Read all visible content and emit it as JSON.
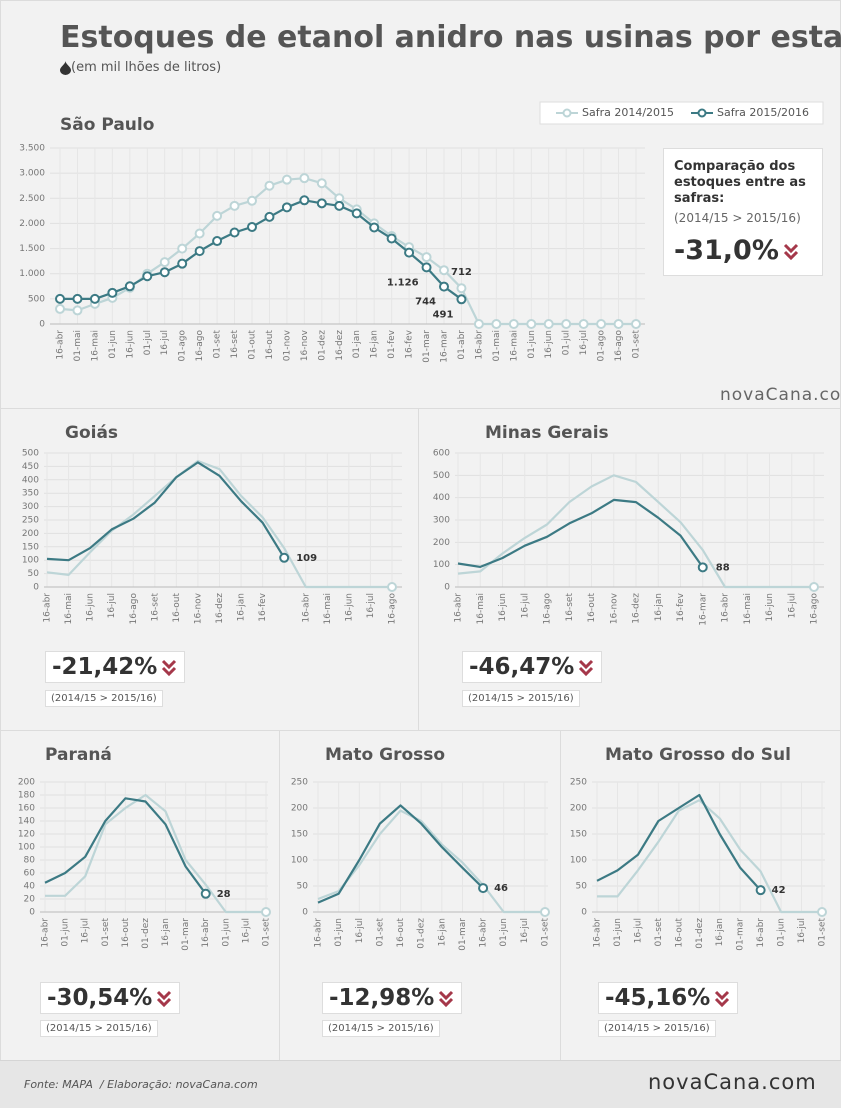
{
  "title": "Estoques de etanol anidro nas usinas por estado",
  "subtitle": "(em mil lhões de litros)",
  "source": "Fonte: MAPA  / Elaboração: novaCana.com",
  "logo": "novaCana.com",
  "chart_data": [
    {
      "type": "line",
      "title": "São Paulo",
      "grid": true,
      "markers": "all",
      "categories": [
        "16-abr",
        "01-mai",
        "16-mai",
        "01-jun",
        "16-jun",
        "01-jul",
        "16-jul",
        "01-ago",
        "16-ago",
        "01-set",
        "16-set",
        "01-out",
        "16-out",
        "01-nov",
        "16-nov",
        "01-dez",
        "16-dez",
        "01-jan",
        "16-jan",
        "01-fev",
        "16-fev",
        "01-mar",
        "16-mar",
        "01-abr",
        "16-abr",
        "01-mai",
        "16-mai",
        "01-jun",
        "16-jun",
        "01-jul",
        "16-jul",
        "01-ago",
        "16-ago",
        "01-set"
      ],
      "ylim": [
        0,
        3500
      ],
      "yticks": [
        0,
        500,
        {
          "value": 1000,
          "label": "1.000"
        },
        {
          "value": 1500,
          "label": "1.500"
        },
        {
          "value": 2000,
          "label": "2.000"
        },
        {
          "value": 2500,
          "label": "2.500"
        },
        {
          "value": 3000,
          "label": "3.000"
        },
        {
          "value": 3500,
          "label": "3.500"
        }
      ],
      "legend": "top-right",
      "series": [
        {
          "name": "Safra 2014/2015",
          "color": "#bdd5d7",
          "values": [
            300,
            270,
            400,
            520,
            720,
            1000,
            1230,
            1500,
            1800,
            2150,
            2350,
            2450,
            2750,
            2870,
            2900,
            2800,
            2500,
            2280,
            2000,
            1750,
            1530,
            1330,
            1070,
            712,
            0,
            0,
            0,
            0,
            0,
            0,
            0,
            0,
            0,
            0
          ],
          "value_labels": [
            null,
            null,
            null,
            null,
            null,
            null,
            null,
            null,
            null,
            null,
            null,
            null,
            null,
            null,
            null,
            null,
            null,
            null,
            null,
            null,
            null,
            null,
            null,
            "712",
            null,
            null,
            null,
            null,
            null,
            null,
            null,
            null,
            null,
            null
          ]
        },
        {
          "name": "Safra 2015/2016",
          "color": "#3c7a84",
          "values": [
            500,
            500,
            500,
            620,
            750,
            950,
            1030,
            1200,
            1450,
            1650,
            1820,
            1930,
            2130,
            2320,
            2460,
            2400,
            2350,
            2200,
            1920,
            1700,
            1420,
            1126,
            744,
            491,
            null,
            null,
            null,
            null,
            null,
            null,
            null,
            null,
            null,
            null
          ],
          "value_labels": [
            null,
            null,
            null,
            null,
            null,
            null,
            null,
            null,
            null,
            null,
            null,
            null,
            null,
            null,
            null,
            null,
            null,
            null,
            null,
            null,
            null,
            "1.126",
            "744",
            "491",
            null,
            null,
            null,
            null,
            null,
            null,
            null,
            null,
            null,
            null
          ]
        }
      ],
      "comparison": {
        "text": "Comparação dos estoques entre as safras:",
        "note": "(2014/15 > 2015/16)",
        "value": "-31,0%"
      }
    },
    {
      "type": "line",
      "title": "Goiás",
      "grid": true,
      "markers": "last",
      "categories": [
        "16-abr",
        "16-mai",
        "16-jun",
        "16-jul",
        "16-ago",
        "16-set",
        "16-out",
        "16-nov",
        "16-dez",
        "16-jan",
        "16-fev",
        null,
        "16-abr",
        "16-mai",
        "16-jun",
        "16-jul",
        "16-ago"
      ],
      "ylim": [
        0,
        500
      ],
      "yticks": [
        0,
        50,
        100,
        150,
        200,
        250,
        300,
        350,
        400,
        450,
        500
      ],
      "series": [
        {
          "color": "#bdd5d7",
          "values": [
            55,
            45,
            130,
            210,
            270,
            340,
            410,
            470,
            440,
            340,
            260,
            145,
            0,
            0,
            0,
            0,
            0
          ]
        },
        {
          "color": "#3c7a84",
          "values": [
            105,
            100,
            145,
            215,
            255,
            315,
            410,
            465,
            415,
            320,
            240,
            109,
            null,
            null,
            null,
            null,
            null
          ],
          "value_labels": [
            null,
            null,
            null,
            null,
            null,
            null,
            null,
            null,
            null,
            null,
            null,
            "109",
            null,
            null,
            null,
            null,
            null
          ]
        }
      ],
      "comparison": {
        "note": "(2014/15 > 2015/16)",
        "value": "-21,42%"
      }
    },
    {
      "type": "line",
      "title": "Minas Gerais",
      "grid": true,
      "markers": "last",
      "categories": [
        "16-abr",
        "16-mai",
        "16-jun",
        "16-jul",
        "16-ago",
        "16-set",
        "16-out",
        "16-nov",
        "16-dez",
        "16-jan",
        "16-fev",
        "16-mar",
        "16-abr",
        "16-mai",
        "16-jun",
        "16-jul",
        "16-ago"
      ],
      "ylim": [
        0,
        600
      ],
      "yticks": [
        0,
        100,
        200,
        300,
        400,
        500,
        600
      ],
      "series": [
        {
          "color": "#bdd5d7",
          "values": [
            60,
            70,
            150,
            220,
            280,
            380,
            450,
            500,
            470,
            380,
            290,
            165,
            0,
            0,
            0,
            0,
            0
          ]
        },
        {
          "color": "#3c7a84",
          "values": [
            105,
            90,
            130,
            185,
            225,
            285,
            330,
            390,
            380,
            310,
            230,
            88,
            null,
            null,
            null,
            null,
            null
          ],
          "value_labels": [
            null,
            null,
            null,
            null,
            null,
            null,
            null,
            null,
            null,
            null,
            null,
            "88",
            null,
            null,
            null,
            null,
            null
          ]
        }
      ],
      "comparison": {
        "note": "(2014/15 > 2015/16)",
        "value": "-46,47%"
      }
    },
    {
      "type": "line",
      "title": "Paraná",
      "grid": true,
      "markers": "last",
      "categories": [
        "16-abr",
        "01-jun",
        "16-jul",
        "01-set",
        "16-out",
        "01-dez",
        "16-jan",
        "01-mar",
        "16-abr",
        "01-jun",
        "16-jul",
        "01-set"
      ],
      "ylim": [
        0,
        200
      ],
      "yticks": [
        0,
        20,
        40,
        60,
        80,
        100,
        120,
        140,
        160,
        180,
        200
      ],
      "series": [
        {
          "color": "#bdd5d7",
          "values": [
            25,
            25,
            55,
            135,
            160,
            180,
            155,
            80,
            42,
            0,
            0,
            0
          ]
        },
        {
          "color": "#3c7a84",
          "values": [
            45,
            60,
            85,
            140,
            175,
            170,
            135,
            70,
            28,
            null,
            null,
            null
          ],
          "value_labels": [
            null,
            null,
            null,
            null,
            null,
            null,
            null,
            null,
            "28",
            null,
            null,
            null
          ]
        }
      ],
      "comparison": {
        "note": "(2014/15 > 2015/16)",
        "value": "-30,54%"
      }
    },
    {
      "type": "line",
      "title": "Mato Grosso",
      "grid": true,
      "markers": "last",
      "categories": [
        "16-abr",
        "01-jun",
        "16-jul",
        "01-set",
        "16-out",
        "01-dez",
        "16-jan",
        "01-mar",
        "16-abr",
        "01-jun",
        "16-jul",
        "01-set"
      ],
      "ylim": [
        0,
        250
      ],
      "yticks": [
        0,
        50,
        100,
        150,
        200,
        250
      ],
      "series": [
        {
          "color": "#bdd5d7",
          "values": [
            25,
            40,
            90,
            150,
            195,
            175,
            130,
            95,
            52,
            0,
            0,
            0
          ]
        },
        {
          "color": "#3c7a84",
          "values": [
            18,
            35,
            100,
            170,
            205,
            170,
            125,
            85,
            46,
            null,
            null,
            null
          ],
          "value_labels": [
            null,
            null,
            null,
            null,
            null,
            null,
            null,
            null,
            "46",
            null,
            null,
            null
          ]
        }
      ],
      "comparison": {
        "note": "(2014/15 > 2015/16)",
        "value": "-12,98%"
      }
    },
    {
      "type": "line",
      "title": "Mato Grosso do Sul",
      "grid": true,
      "markers": "last",
      "categories": [
        "16-abr",
        "01-jun",
        "16-jul",
        "01-set",
        "16-out",
        "01-dez",
        "16-jan",
        "01-mar",
        "16-abr",
        "01-jun",
        "16-jul",
        "01-set"
      ],
      "ylim": [
        0,
        250
      ],
      "yticks": [
        0,
        50,
        100,
        150,
        200,
        250
      ],
      "series": [
        {
          "color": "#bdd5d7",
          "values": [
            30,
            30,
            80,
            135,
            195,
            215,
            180,
            120,
            78,
            0,
            0,
            0
          ]
        },
        {
          "color": "#3c7a84",
          "values": [
            60,
            80,
            110,
            175,
            200,
            225,
            150,
            85,
            42,
            null,
            null,
            null
          ],
          "value_labels": [
            null,
            null,
            null,
            null,
            null,
            null,
            null,
            null,
            "42",
            null,
            null,
            null
          ]
        }
      ],
      "comparison": {
        "note": "(2014/15 > 2015/16)",
        "value": "-45,16%"
      }
    }
  ]
}
